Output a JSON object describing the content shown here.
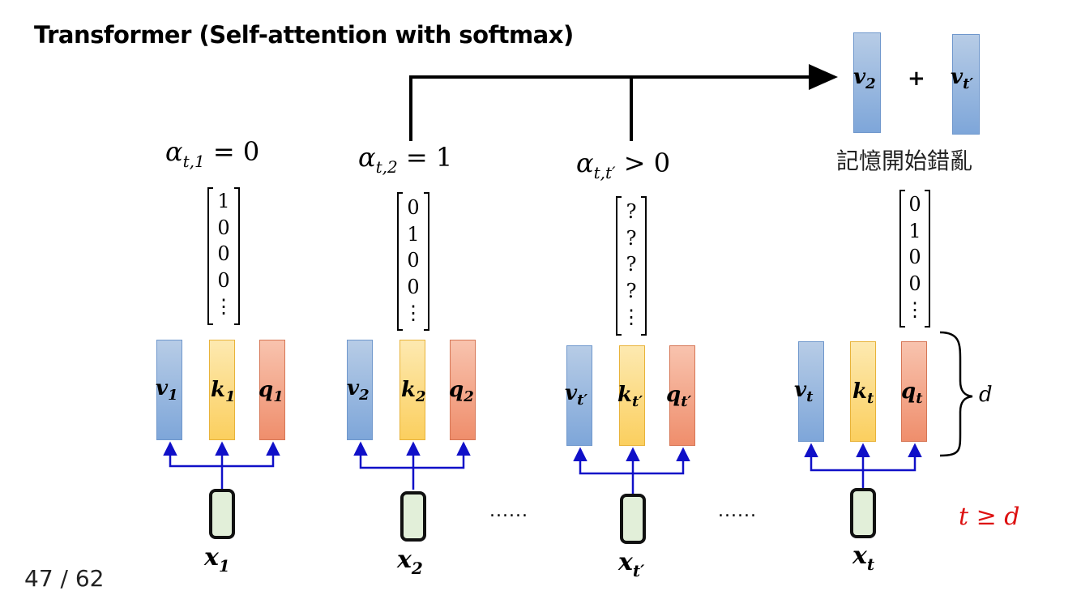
{
  "title": "Transformer (Self-attention with softmax)",
  "page_number": "47 / 62",
  "memory_note": "記憶開始錯亂",
  "ellipsis": "......",
  "condition": "t ≥ d",
  "dimension_label": "d",
  "plus_sign": "+",
  "output": {
    "left": {
      "base": "v",
      "sub": "2"
    },
    "right": {
      "base": "v",
      "sub": "t′"
    }
  },
  "columns": [
    {
      "alpha": {
        "sub": "t,1",
        "rel": "= 0"
      },
      "vector": [
        "1",
        "0",
        "0",
        "0",
        "⋮"
      ],
      "v": {
        "base": "v",
        "sub": "1"
      },
      "k": {
        "base": "k",
        "sub": "1"
      },
      "q": {
        "base": "q",
        "sub": "1"
      },
      "x": {
        "base": "x",
        "sub": "1"
      }
    },
    {
      "alpha": {
        "sub": "t,2",
        "rel": "= 1"
      },
      "vector": [
        "0",
        "1",
        "0",
        "0",
        "⋮"
      ],
      "v": {
        "base": "v",
        "sub": "2"
      },
      "k": {
        "base": "k",
        "sub": "2"
      },
      "q": {
        "base": "q",
        "sub": "2"
      },
      "x": {
        "base": "x",
        "sub": "2"
      }
    },
    {
      "alpha": {
        "sub": "t,t′",
        "rel": "> 0"
      },
      "vector": [
        "?",
        "?",
        "?",
        "?",
        "⋮"
      ],
      "v": {
        "base": "v",
        "sub": "t′"
      },
      "k": {
        "base": "k",
        "sub": "t′"
      },
      "q": {
        "base": "q",
        "sub": "t′"
      },
      "x": {
        "base": "x",
        "sub": "t′"
      }
    },
    {
      "alpha": null,
      "vector": [
        "0",
        "1",
        "0",
        "0",
        "⋮"
      ],
      "v": {
        "base": "v",
        "sub": "t"
      },
      "k": {
        "base": "k",
        "sub": "t"
      },
      "q": {
        "base": "q",
        "sub": "t"
      },
      "x": {
        "base": "x",
        "sub": "t"
      }
    }
  ],
  "colors": {
    "value": "#9dbbe3",
    "key": "#fcd97f",
    "query": "#f3a587",
    "arrow": "#1010c8",
    "condition": "#dd1111",
    "token": "#e2efd9"
  }
}
